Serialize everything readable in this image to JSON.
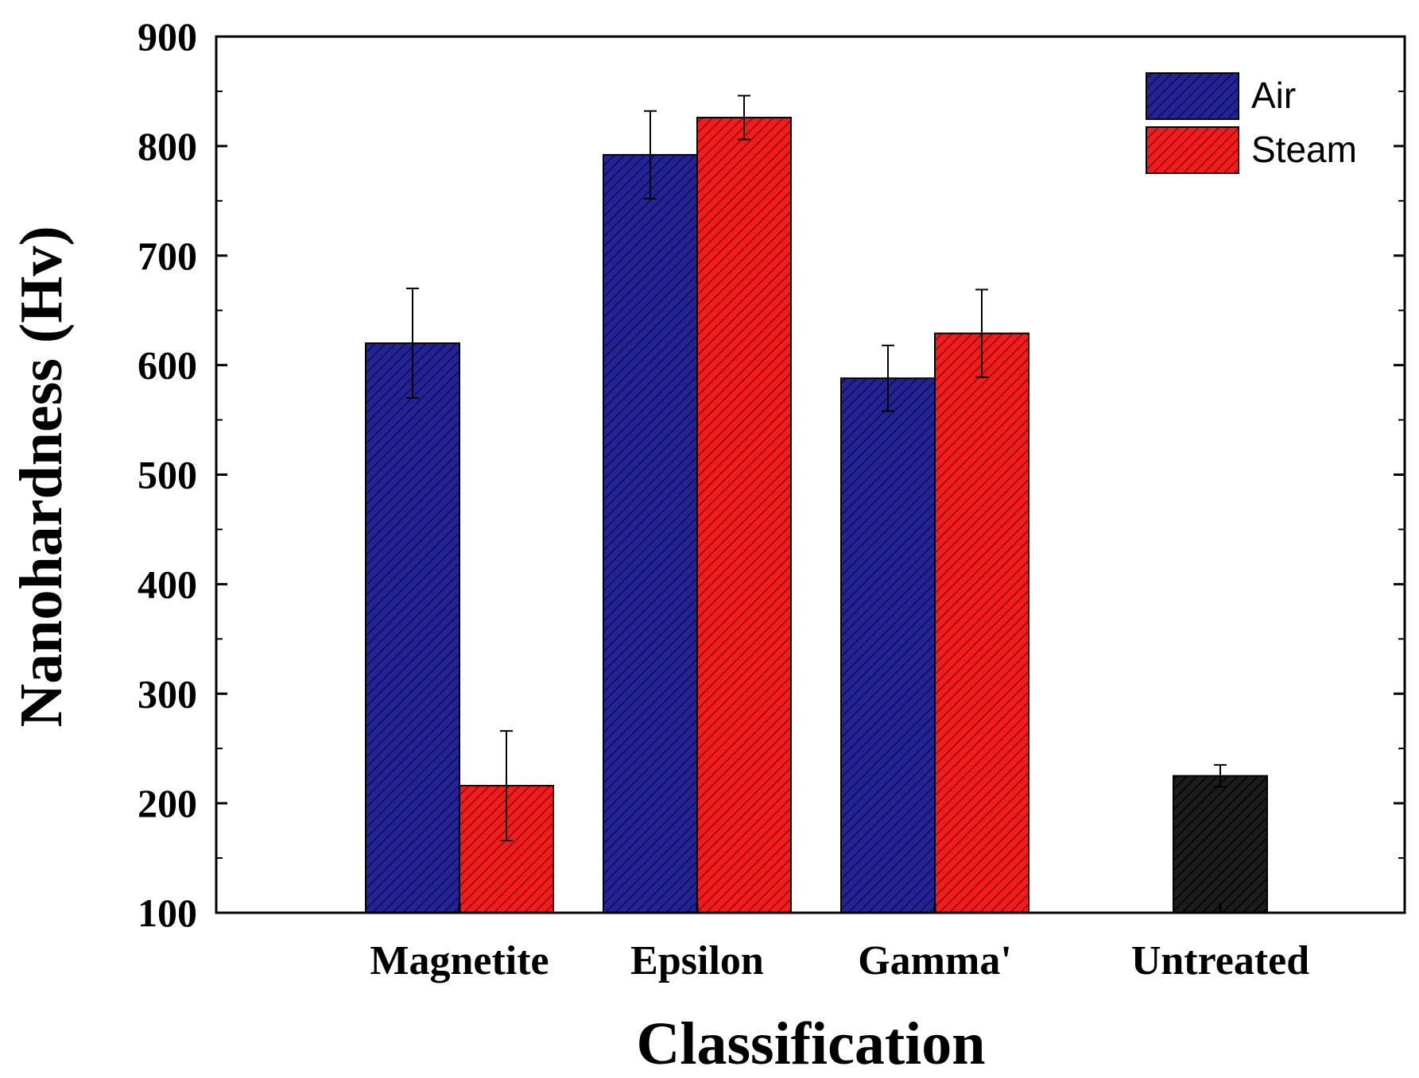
{
  "chart_data": {
    "type": "bar",
    "title": "",
    "xlabel": "Classification",
    "ylabel": "Nanohardness (Hv)",
    "ylim": [
      100,
      900
    ],
    "yticks": [
      100,
      200,
      300,
      400,
      500,
      600,
      700,
      800,
      900
    ],
    "ytick_labels": [
      "100",
      "200",
      "300",
      "400",
      "500",
      "600",
      "700",
      "800",
      "900"
    ],
    "categories": [
      "Magnetite",
      "Epsilon",
      "Gamma'",
      "Untreated"
    ],
    "series": [
      {
        "name": "Air",
        "color": "#1f1f8f",
        "values": [
          620,
          792,
          588,
          null
        ],
        "errors": [
          50,
          40,
          30,
          null
        ]
      },
      {
        "name": "Steam",
        "color": "#ee1c1c",
        "values": [
          216,
          826,
          629,
          null
        ],
        "errors": [
          50,
          20,
          40,
          null
        ]
      }
    ],
    "untreated": {
      "category": "Untreated",
      "value": 225,
      "error": 10,
      "color": "#1a1a1a"
    },
    "legend": {
      "position": "top-right",
      "entries": [
        "Air",
        "Steam"
      ]
    },
    "grid": false,
    "hatch": "diagonal"
  }
}
